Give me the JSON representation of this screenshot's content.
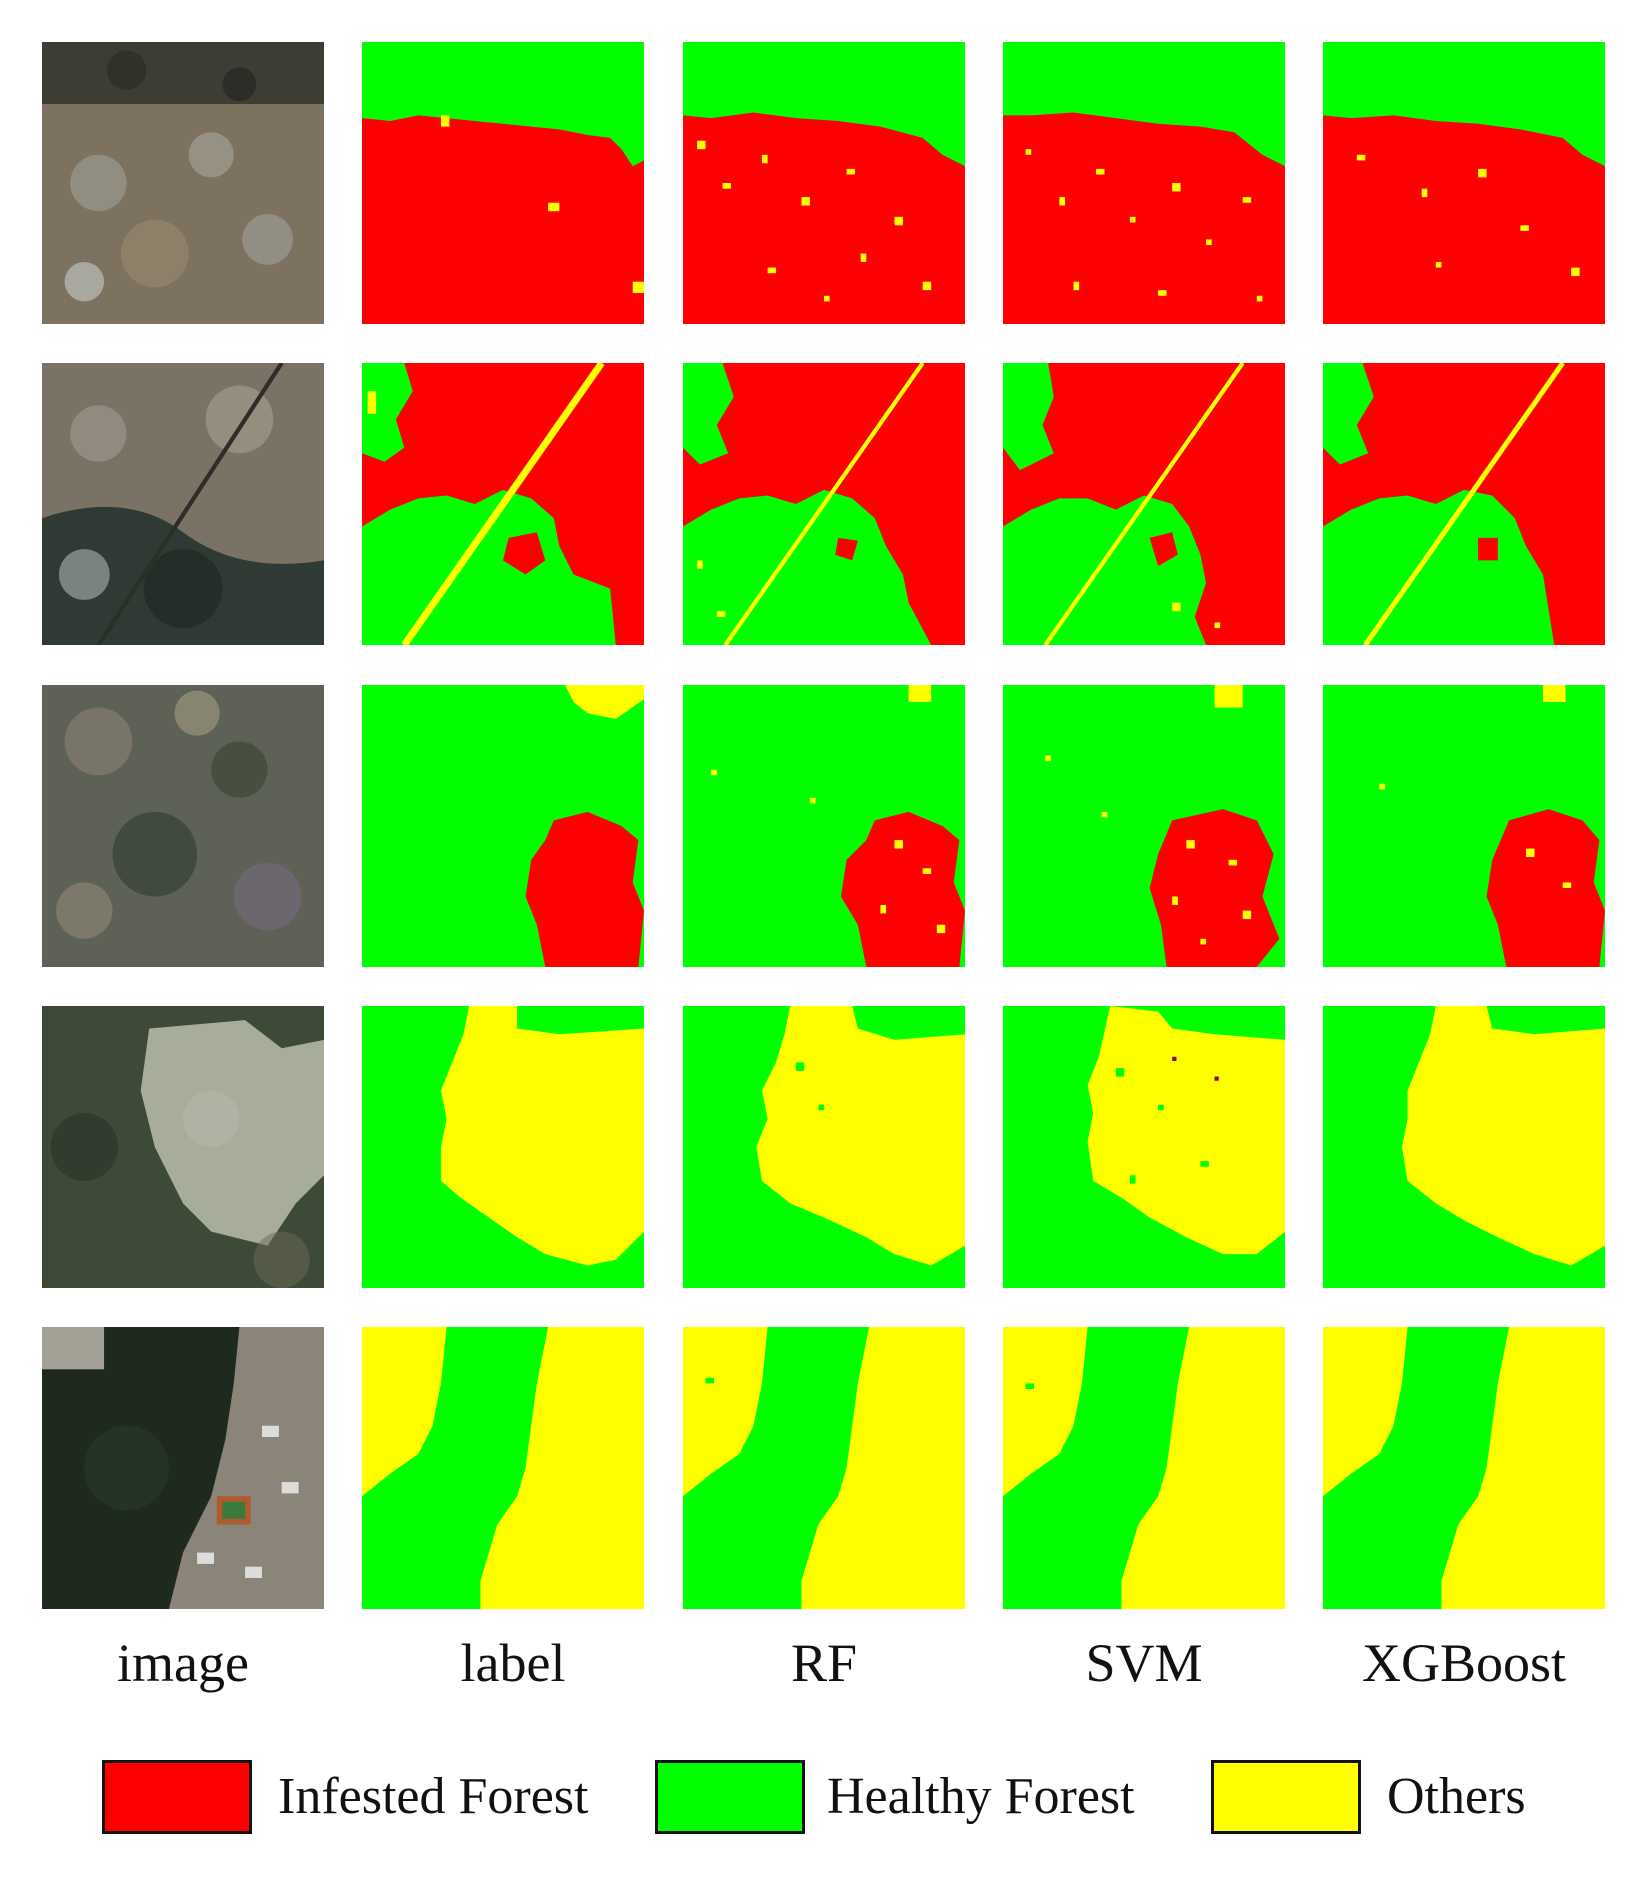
{
  "figure": {
    "columns": [
      {
        "key": "image",
        "label": "image"
      },
      {
        "key": "label",
        "label": "label"
      },
      {
        "key": "rf",
        "label": "RF"
      },
      {
        "key": "svm",
        "label": "SVM"
      },
      {
        "key": "xgboost",
        "label": "XGBoost"
      }
    ],
    "rows": 5,
    "legend": [
      {
        "label": "Infested Forest",
        "color": "#ff0000"
      },
      {
        "label": "Healthy Forest",
        "color": "#00ff00"
      },
      {
        "label": "Others",
        "color": "#ffff00"
      }
    ]
  }
}
